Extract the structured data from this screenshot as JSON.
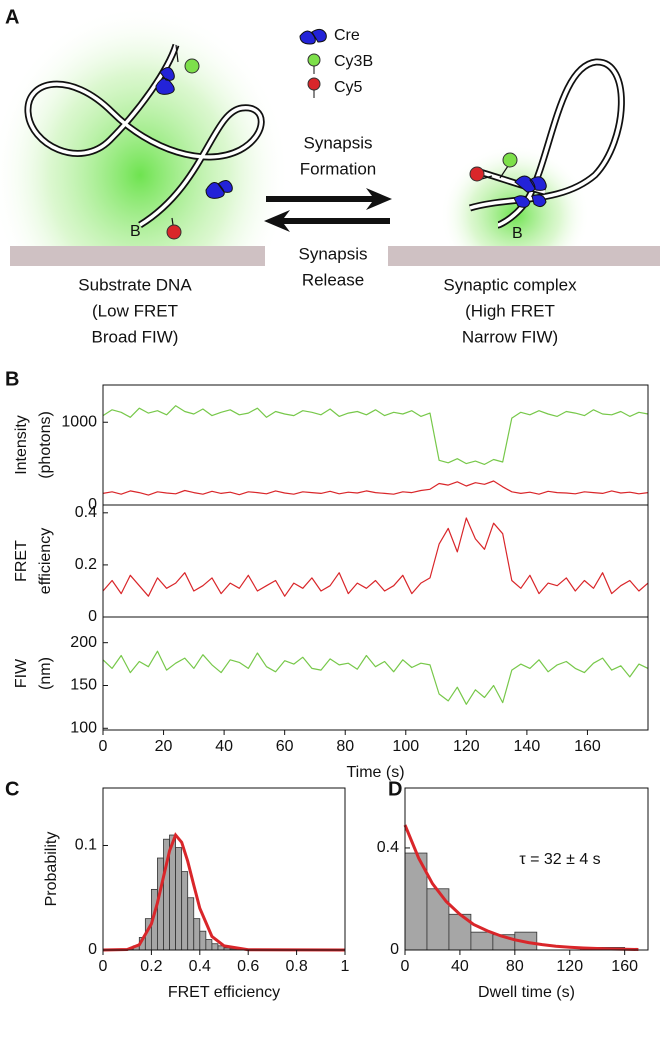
{
  "diagram": {
    "panel": "A",
    "legend": [
      "Cre",
      "Cy3B",
      "Cy5"
    ],
    "arrows": {
      "forward": [
        "Synapsis",
        "Formation"
      ],
      "reverse": [
        "Synapsis",
        "Release"
      ]
    },
    "left": {
      "end_label": "B",
      "caption": [
        "Substrate DNA",
        "(Low FRET",
        "Broad FIW)"
      ]
    },
    "right": {
      "end_label": "B",
      "caption": [
        "Synaptic complex",
        "(High FRET",
        "Narrow FIW)"
      ]
    }
  },
  "chart_data": [
    {
      "type": "line",
      "panel": "B",
      "ylabel": [
        "Intensity",
        "(photons)"
      ],
      "xlim": [
        0,
        180
      ],
      "ylim": [
        0,
        1450
      ],
      "yticks": [
        0,
        1000
      ],
      "x": [
        0,
        3,
        6,
        9,
        12,
        15,
        18,
        21,
        24,
        27,
        30,
        33,
        36,
        39,
        42,
        45,
        48,
        51,
        54,
        57,
        60,
        63,
        66,
        69,
        72,
        75,
        78,
        81,
        84,
        87,
        90,
        93,
        96,
        99,
        102,
        105,
        108,
        111,
        114,
        117,
        120,
        123,
        126,
        129,
        132,
        135,
        138,
        141,
        144,
        147,
        150,
        153,
        156,
        159,
        162,
        165,
        168,
        171,
        174,
        177,
        180
      ],
      "series": [
        {
          "color": "#77c84a",
          "values": [
            1080,
            1150,
            1120,
            1060,
            1170,
            1110,
            1140,
            1090,
            1200,
            1130,
            1100,
            1160,
            1080,
            1120,
            1150,
            1090,
            1110,
            1170,
            1060,
            1130,
            1100,
            1080,
            1140,
            1120,
            1090,
            1160,
            1070,
            1110,
            1130,
            1090,
            1150,
            1080,
            1120,
            1100,
            1140,
            1070,
            1110,
            540,
            510,
            560,
            500,
            530,
            490,
            550,
            520,
            1050,
            1120,
            1090,
            1140,
            1100,
            1070,
            1130,
            1110,
            1080,
            1150,
            1100,
            1090,
            1130,
            1070,
            1120,
            1100
          ]
        },
        {
          "color": "#d9262a",
          "values": [
            140,
            160,
            130,
            170,
            150,
            120,
            160,
            145,
            135,
            175,
            150,
            130,
            165,
            140,
            155,
            125,
            160,
            150,
            135,
            170,
            145,
            130,
            160,
            150,
            140,
            165,
            135,
            155,
            145,
            170,
            150,
            140,
            130,
            160,
            150,
            175,
            190,
            260,
            240,
            280,
            230,
            270,
            250,
            290,
            220,
            160,
            140,
            155,
            130,
            165,
            150,
            145,
            135,
            160,
            150,
            140,
            170,
            145,
            155,
            135,
            150
          ]
        }
      ]
    },
    {
      "type": "line",
      "ylabel": [
        "FRET",
        "efficiency"
      ],
      "xlim": [
        0,
        180
      ],
      "ylim": [
        0,
        0.43
      ],
      "yticks": [
        0,
        0.2,
        0.4
      ],
      "x": [
        0,
        3,
        6,
        9,
        12,
        15,
        18,
        21,
        24,
        27,
        30,
        33,
        36,
        39,
        42,
        45,
        48,
        51,
        54,
        57,
        60,
        63,
        66,
        69,
        72,
        75,
        78,
        81,
        84,
        87,
        90,
        93,
        96,
        99,
        102,
        105,
        108,
        111,
        114,
        117,
        120,
        123,
        126,
        129,
        132,
        135,
        138,
        141,
        144,
        147,
        150,
        153,
        156,
        159,
        162,
        165,
        168,
        171,
        174,
        177,
        180
      ],
      "series": [
        {
          "color": "#d9262a",
          "values": [
            0.1,
            0.14,
            0.09,
            0.16,
            0.12,
            0.08,
            0.15,
            0.11,
            0.13,
            0.17,
            0.1,
            0.12,
            0.15,
            0.09,
            0.13,
            0.11,
            0.16,
            0.1,
            0.12,
            0.14,
            0.08,
            0.13,
            0.11,
            0.15,
            0.1,
            0.12,
            0.17,
            0.09,
            0.13,
            0.11,
            0.14,
            0.1,
            0.12,
            0.16,
            0.09,
            0.13,
            0.15,
            0.28,
            0.34,
            0.25,
            0.38,
            0.3,
            0.26,
            0.36,
            0.32,
            0.14,
            0.11,
            0.16,
            0.09,
            0.13,
            0.12,
            0.15,
            0.1,
            0.14,
            0.11,
            0.17,
            0.09,
            0.12,
            0.14,
            0.1,
            0.13
          ]
        }
      ]
    },
    {
      "type": "line",
      "ylabel": [
        "FIW",
        "(nm)"
      ],
      "xlabel": "Time (s)",
      "xlim": [
        0,
        180
      ],
      "xticks": [
        0,
        20,
        40,
        60,
        80,
        100,
        120,
        140,
        160
      ],
      "ylim": [
        98,
        230
      ],
      "yticks": [
        100,
        150,
        200
      ],
      "x": [
        0,
        3,
        6,
        9,
        12,
        15,
        18,
        21,
        24,
        27,
        30,
        33,
        36,
        39,
        42,
        45,
        48,
        51,
        54,
        57,
        60,
        63,
        66,
        69,
        72,
        75,
        78,
        81,
        84,
        87,
        90,
        93,
        96,
        99,
        102,
        105,
        108,
        111,
        114,
        117,
        120,
        123,
        126,
        129,
        132,
        135,
        138,
        141,
        144,
        147,
        150,
        153,
        156,
        159,
        162,
        165,
        168,
        171,
        174,
        177,
        180
      ],
      "series": [
        {
          "color": "#77c84a",
          "values": [
            180,
            170,
            185,
            165,
            178,
            172,
            190,
            168,
            176,
            182,
            170,
            186,
            174,
            165,
            180,
            177,
            170,
            188,
            172,
            166,
            179,
            175,
            183,
            170,
            168,
            181,
            174,
            176,
            169,
            185,
            172,
            178,
            166,
            180,
            171,
            176,
            174,
            140,
            132,
            148,
            128,
            145,
            136,
            150,
            130,
            168,
            175,
            170,
            180,
            166,
            174,
            178,
            170,
            165,
            176,
            182,
            168,
            173,
            160,
            175,
            170
          ]
        }
      ]
    },
    {
      "type": "histogram",
      "panel": "C",
      "xlabel": "FRET efficiency",
      "ylabel": "Probability",
      "color": "#a6a6a6",
      "xlim": [
        0,
        1
      ],
      "xticks": [
        0,
        0.2,
        0.4,
        0.6,
        0.8,
        1
      ],
      "ylim": [
        0,
        0.155
      ],
      "yticks": [
        0,
        0.1
      ],
      "bins": [
        0.1,
        0.125,
        0.15,
        0.175,
        0.2,
        0.225,
        0.25,
        0.275,
        0.3,
        0.325,
        0.35,
        0.375,
        0.4,
        0.425,
        0.45,
        0.475,
        0.5,
        0.525,
        0.55,
        0.575,
        0.6
      ],
      "values": [
        0.001,
        0.004,
        0.012,
        0.03,
        0.058,
        0.088,
        0.106,
        0.11,
        0.098,
        0.075,
        0.05,
        0.03,
        0.018,
        0.01,
        0.006,
        0.004,
        0.002,
        0.001,
        0.001,
        0.0005
      ],
      "fit": {
        "color": "#d9262a",
        "x": [
          0,
          0.1,
          0.15,
          0.2,
          0.225,
          0.25,
          0.275,
          0.3,
          0.325,
          0.35,
          0.375,
          0.4,
          0.45,
          0.5,
          0.6,
          1
        ],
        "values": [
          0,
          0.0005,
          0.005,
          0.025,
          0.045,
          0.07,
          0.095,
          0.11,
          0.103,
          0.085,
          0.062,
          0.04,
          0.013,
          0.004,
          0.0003,
          0
        ]
      }
    },
    {
      "type": "histogram",
      "panel": "D",
      "xlabel": "Dwell time (s)",
      "annotation": "τ = 32 ± 4 s",
      "color": "#a6a6a6",
      "xlim": [
        0,
        177
      ],
      "xticks": [
        0,
        40,
        80,
        120,
        160
      ],
      "ylim": [
        0,
        0.635
      ],
      "yticks": [
        0,
        0.4
      ],
      "bins": [
        0,
        16,
        32,
        48,
        64,
        80,
        96,
        112,
        128,
        144,
        160
      ],
      "values": [
        0.38,
        0.24,
        0.14,
        0.07,
        0.06,
        0.07,
        0,
        0,
        0.01,
        0.01
      ],
      "fit": {
        "color": "#d9262a",
        "x": [
          0,
          10,
          20,
          30,
          40,
          50,
          60,
          70,
          80,
          90,
          100,
          110,
          120,
          130,
          140,
          150,
          160,
          170
        ],
        "values": [
          0.49,
          0.36,
          0.26,
          0.19,
          0.14,
          0.1,
          0.075,
          0.055,
          0.04,
          0.029,
          0.021,
          0.015,
          0.011,
          0.008,
          0.006,
          0.004,
          0.003,
          0.002
        ]
      }
    }
  ]
}
